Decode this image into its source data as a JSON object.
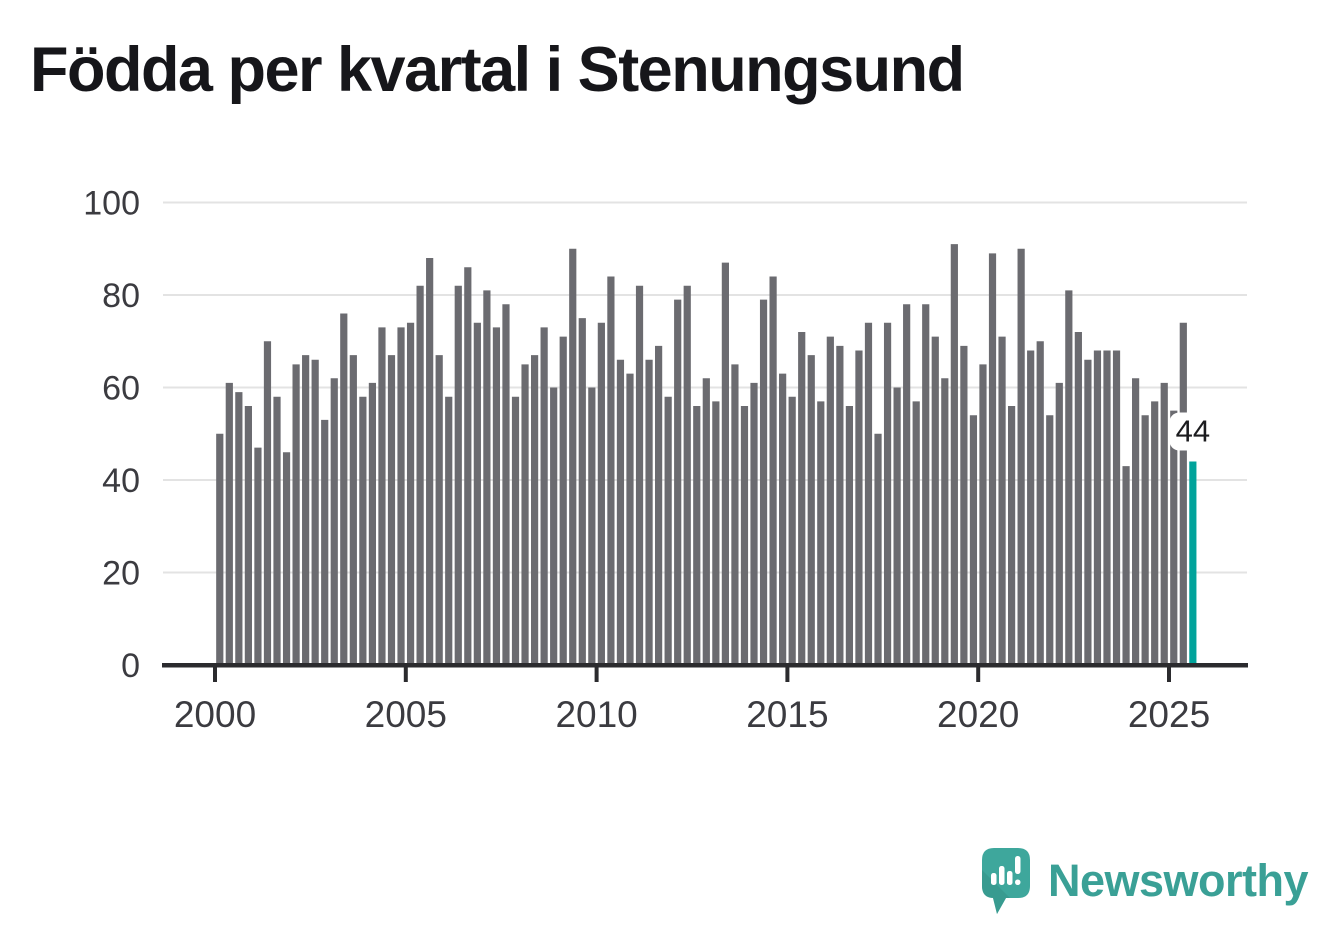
{
  "title": "Födda per kvartal i Stenungsund",
  "branding": {
    "name": "Newsworthy",
    "color": "#3aa096"
  },
  "annotation": {
    "last_value_label": "44"
  },
  "chart_data": {
    "type": "bar",
    "title": "Födda per kvartal i Stenungsund",
    "xlabel": "",
    "ylabel": "",
    "ylim": [
      0,
      100
    ],
    "grid": true,
    "y_ticks": [
      0,
      20,
      40,
      60,
      80,
      100
    ],
    "x_ticks": [
      2000,
      2005,
      2010,
      2015,
      2020,
      2025
    ],
    "bar_color": "#6b6b70",
    "highlight_color": "#00a39b",
    "axis_color": "#2b2b2e",
    "grid_color": "#e3e3e3",
    "tick_label_color": "#3b3b40",
    "callout": {
      "label": "44",
      "bg": "#ffffff",
      "text_color": "#1c1c1f"
    },
    "start_year": 2000,
    "start_quarter": 1,
    "categories": [
      "2000Q1",
      "2000Q2",
      "2000Q3",
      "2000Q4",
      "2001Q1",
      "2001Q2",
      "2001Q3",
      "2001Q4",
      "2002Q1",
      "2002Q2",
      "2002Q3",
      "2002Q4",
      "2003Q1",
      "2003Q2",
      "2003Q3",
      "2003Q4",
      "2004Q1",
      "2004Q2",
      "2004Q3",
      "2004Q4",
      "2005Q1",
      "2005Q2",
      "2005Q3",
      "2005Q4",
      "2006Q1",
      "2006Q2",
      "2006Q3",
      "2006Q4",
      "2007Q1",
      "2007Q2",
      "2007Q3",
      "2007Q4",
      "2008Q1",
      "2008Q2",
      "2008Q3",
      "2008Q4",
      "2009Q1",
      "2009Q2",
      "2009Q3",
      "2009Q4",
      "2010Q1",
      "2010Q2",
      "2010Q3",
      "2010Q4",
      "2011Q1",
      "2011Q2",
      "2011Q3",
      "2011Q4",
      "2012Q1",
      "2012Q2",
      "2012Q3",
      "2012Q4",
      "2013Q1",
      "2013Q2",
      "2013Q3",
      "2013Q4",
      "2014Q1",
      "2014Q2",
      "2014Q3",
      "2014Q4",
      "2015Q1",
      "2015Q2",
      "2015Q3",
      "2015Q4",
      "2016Q1",
      "2016Q2",
      "2016Q3",
      "2016Q4",
      "2017Q1",
      "2017Q2",
      "2017Q3",
      "2017Q4",
      "2018Q1",
      "2018Q2",
      "2018Q3",
      "2018Q4",
      "2019Q1",
      "2019Q2",
      "2019Q3",
      "2019Q4",
      "2020Q1",
      "2020Q2",
      "2020Q3",
      "2020Q4",
      "2021Q1",
      "2021Q2",
      "2021Q3",
      "2021Q4",
      "2022Q1",
      "2022Q2",
      "2022Q3",
      "2022Q4",
      "2023Q1",
      "2023Q2",
      "2023Q3",
      "2023Q4",
      "2024Q1",
      "2024Q2",
      "2024Q3",
      "2024Q4",
      "2025Q1",
      "2025Q2",
      "2025Q3"
    ],
    "values": [
      50,
      61,
      59,
      56,
      47,
      70,
      58,
      46,
      65,
      67,
      66,
      53,
      62,
      76,
      67,
      58,
      61,
      73,
      67,
      73,
      74,
      82,
      88,
      67,
      58,
      82,
      86,
      74,
      81,
      73,
      78,
      58,
      65,
      67,
      73,
      60,
      71,
      90,
      75,
      60,
      74,
      84,
      66,
      63,
      82,
      66,
      69,
      58,
      79,
      82,
      56,
      62,
      57,
      87,
      65,
      56,
      61,
      79,
      84,
      63,
      58,
      72,
      67,
      57,
      71,
      69,
      56,
      68,
      74,
      50,
      74,
      60,
      78,
      57,
      78,
      71,
      62,
      91,
      69,
      54,
      65,
      89,
      71,
      56,
      90,
      68,
      70,
      54,
      61,
      81,
      72,
      66,
      68,
      68,
      68,
      43,
      62,
      54,
      57,
      61,
      55,
      74,
      44
    ]
  }
}
